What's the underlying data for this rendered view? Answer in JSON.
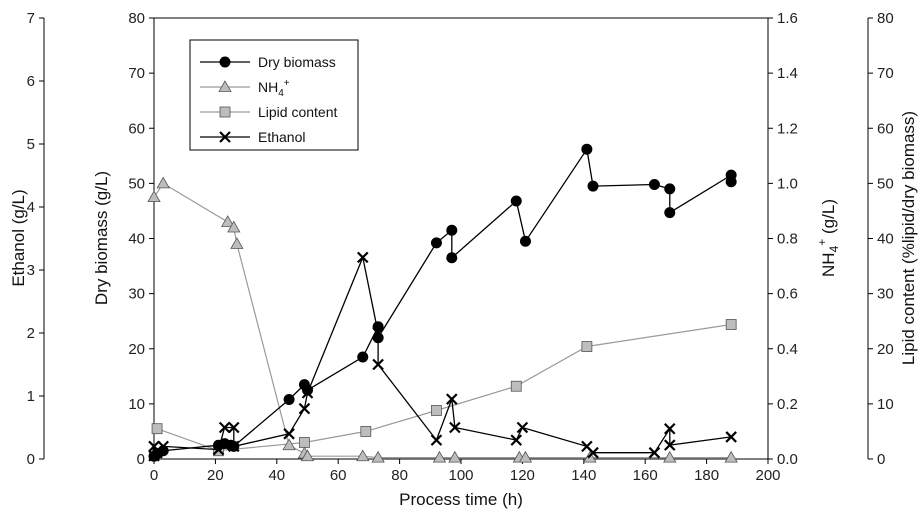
{
  "chart_data": {
    "type": "line",
    "axes": {
      "x": {
        "label": "Process time (h)",
        "range": [
          0,
          200
        ],
        "ticks": [
          0,
          20,
          40,
          60,
          80,
          100,
          120,
          140,
          160,
          180,
          200
        ]
      },
      "y_biomass": {
        "label": "Dry biomass (g/L)",
        "range": [
          0,
          80
        ],
        "ticks": [
          0,
          10,
          20,
          30,
          40,
          50,
          60,
          70,
          80
        ],
        "side": "left"
      },
      "y_ethanol": {
        "label": "Ethanol (g/L)",
        "range": [
          0,
          7
        ],
        "ticks": [
          0,
          1,
          2,
          3,
          4,
          5,
          6,
          7
        ],
        "side": "far-left"
      },
      "y_nh4": {
        "label": "NH",
        "label_sub": "4",
        "label_sup": "+",
        "label_unit": " (g/L)",
        "range": [
          0,
          1.6
        ],
        "ticks": [
          "0.0",
          "0.2",
          "0.4",
          "0.6",
          "0.8",
          "1.0",
          "1.2",
          "1.4",
          "1.6"
        ],
        "side": "right"
      },
      "y_lipid": {
        "label": "Lipid content (%lipid/dry biomass)",
        "range": [
          0,
          80
        ],
        "ticks": [
          0,
          10,
          20,
          30,
          40,
          50,
          60,
          70,
          80
        ],
        "side": "far-right"
      }
    },
    "legend": {
      "placement": "top-left",
      "entries": [
        {
          "label": "Dry biomass",
          "marker": "circle"
        },
        {
          "label": "NH",
          "sub": "4",
          "sup": "+",
          "marker": "triangle"
        },
        {
          "label": "Lipid content",
          "marker": "square"
        },
        {
          "label": "Ethanol",
          "marker": "cross"
        }
      ]
    },
    "series": [
      {
        "name": "Dry biomass",
        "axis": "y_biomass",
        "marker": "circle",
        "color": "#000000",
        "points": [
          [
            0,
            0.5
          ],
          [
            1,
            1
          ],
          [
            3,
            1.5
          ],
          [
            21,
            2.5
          ],
          [
            23,
            2.8
          ],
          [
            25,
            2.5
          ],
          [
            26,
            2.3
          ],
          [
            44,
            10.8
          ],
          [
            49,
            13.5
          ],
          [
            50,
            12.5
          ],
          [
            68,
            18.5
          ],
          [
            73,
            24
          ],
          [
            73,
            22
          ],
          [
            92,
            39.2
          ],
          [
            97,
            41.5
          ],
          [
            97,
            36.5
          ],
          [
            118,
            46.8
          ],
          [
            121,
            39.5
          ],
          [
            141,
            56.2
          ],
          [
            143,
            49.5
          ],
          [
            163,
            49.8
          ],
          [
            168,
            49
          ],
          [
            168,
            44.7
          ],
          [
            188,
            51.5
          ],
          [
            188,
            50.3
          ]
        ]
      },
      {
        "name": "NH4+",
        "axis": "y_nh4",
        "marker": "triangle",
        "color": "#9a9a9a",
        "points": [
          [
            0,
            0.95
          ],
          [
            3,
            1.0
          ],
          [
            24,
            0.86
          ],
          [
            26,
            0.84
          ],
          [
            27,
            0.78
          ],
          [
            44,
            0.05
          ],
          [
            49,
            0.02
          ],
          [
            50,
            0.01
          ],
          [
            68,
            0.01
          ],
          [
            73,
            0.005
          ],
          [
            93,
            0.005
          ],
          [
            98,
            0.005
          ],
          [
            119,
            0.005
          ],
          [
            121,
            0.005
          ],
          [
            142,
            0.005
          ],
          [
            168,
            0.005
          ],
          [
            188,
            0.005
          ]
        ]
      },
      {
        "name": "Lipid content",
        "axis": "y_lipid",
        "marker": "square",
        "color": "#9a9a9a",
        "points": [
          [
            1,
            5.5
          ],
          [
            21,
            1.5
          ],
          [
            49,
            3
          ],
          [
            69,
            5
          ],
          [
            92,
            8.8
          ],
          [
            118,
            13.2
          ],
          [
            141,
            20.4
          ],
          [
            188,
            24.4
          ]
        ]
      },
      {
        "name": "Ethanol",
        "axis": "y_ethanol",
        "marker": "cross",
        "color": "#000000",
        "points": [
          [
            0,
            0.05
          ],
          [
            0,
            0.2
          ],
          [
            1,
            0.1
          ],
          [
            3,
            0.2
          ],
          [
            21,
            0.15
          ],
          [
            23,
            0.5
          ],
          [
            26,
            0.5
          ],
          [
            26,
            0.2
          ],
          [
            44,
            0.4
          ],
          [
            49,
            0.8
          ],
          [
            50,
            1.05
          ],
          [
            68,
            3.2
          ],
          [
            73,
            2.0
          ],
          [
            73,
            1.5
          ],
          [
            92,
            0.3
          ],
          [
            97,
            0.95
          ],
          [
            98,
            0.5
          ],
          [
            118,
            0.3
          ],
          [
            120,
            0.5
          ],
          [
            141,
            0.2
          ],
          [
            143,
            0.1
          ],
          [
            163,
            0.1
          ],
          [
            168,
            0.48
          ],
          [
            168,
            0.22
          ],
          [
            188,
            0.35
          ]
        ]
      }
    ]
  }
}
